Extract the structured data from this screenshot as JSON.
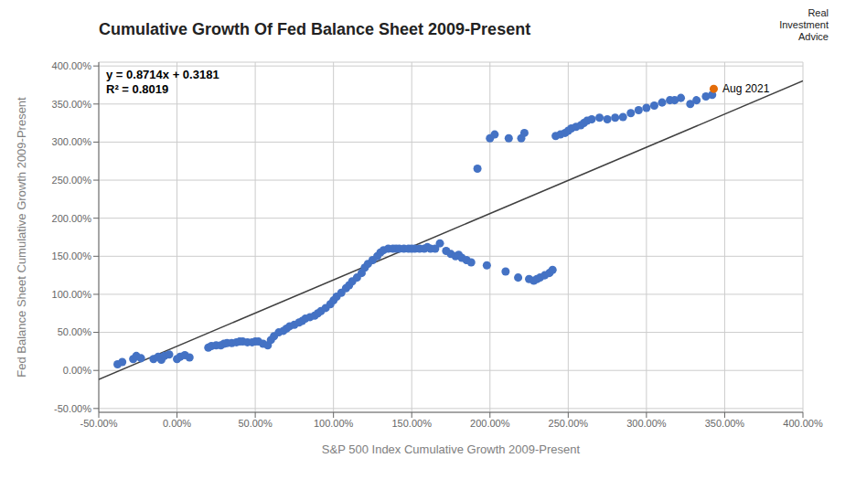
{
  "chart_data": {
    "type": "scatter",
    "title": "Cumulative Growth Of Fed Balance Sheet 2009-Present",
    "x_label": "S&P 500 Index Cumulative Growth 2009-Present",
    "y_label": "Fed Balance Sheet Cumulative Growth 2009-Present",
    "annotations": [
      [
        "y = 0.8714x + 0.3181",
        "R² = 0.8019"
      ],
      [
        "Real",
        "Investment",
        "Advice"
      ]
    ],
    "xlim": [
      -0.5,
      4.0
    ],
    "ylim": [
      -0.55,
      4.05
    ],
    "xticks": [
      {
        "value": -0.5,
        "label": "-50.00%"
      },
      {
        "value": 0.0,
        "label": "0.00%"
      },
      {
        "value": 0.5,
        "label": "50.00%"
      },
      {
        "value": 1.0,
        "label": "100.00%"
      },
      {
        "value": 1.5,
        "label": "150.00%"
      },
      {
        "value": 2.0,
        "label": "200.00%"
      },
      {
        "value": 2.5,
        "label": "250.00%"
      },
      {
        "value": 3.0,
        "label": "300.00%"
      },
      {
        "value": 3.5,
        "label": "350.00%"
      },
      {
        "value": 4.0,
        "label": "400.00%"
      }
    ],
    "yticks": [
      {
        "value": -0.5,
        "label": "-50.00%"
      },
      {
        "value": 0.0,
        "label": "0.00%"
      },
      {
        "value": 0.5,
        "label": "50.00%"
      },
      {
        "value": 1.0,
        "label": "100.00%"
      },
      {
        "value": 1.5,
        "label": "150.00%"
      },
      {
        "value": 2.0,
        "label": "200.00%"
      },
      {
        "value": 2.5,
        "label": "250.00%"
      },
      {
        "value": 3.0,
        "label": "300.00%"
      },
      {
        "value": 3.5,
        "label": "350.00%"
      },
      {
        "value": 4.0,
        "label": "400.00%"
      }
    ],
    "grid": true,
    "series": [
      {
        "type": "scatter",
        "color": "#4472C4",
        "marker": "circle",
        "x": [
          -0.38,
          -0.35,
          -0.28,
          -0.26,
          -0.23,
          -0.15,
          -0.12,
          -0.1,
          -0.08,
          -0.05,
          0.0,
          0.02,
          0.05,
          0.08,
          0.2,
          0.22,
          0.25,
          0.28,
          0.3,
          0.32,
          0.35,
          0.38,
          0.4,
          0.42,
          0.45,
          0.48,
          0.5,
          0.52,
          0.55,
          0.58,
          0.6,
          0.62,
          0.65,
          0.68,
          0.7,
          0.72,
          0.75,
          0.78,
          0.8,
          0.82,
          0.85,
          0.88,
          0.9,
          0.92,
          0.95,
          0.98,
          1.0,
          1.02,
          1.05,
          1.08,
          1.1,
          1.12,
          1.15,
          1.18,
          1.2,
          1.22,
          1.25,
          1.28,
          1.3,
          1.32,
          1.35,
          1.38,
          1.4,
          1.42,
          1.45,
          1.48,
          1.5,
          1.52,
          1.55,
          1.58,
          1.6,
          1.62,
          1.65,
          1.68,
          1.72,
          1.75,
          1.78,
          1.8,
          1.82,
          1.85,
          1.88,
          1.92,
          1.98,
          2.0,
          2.03,
          2.1,
          2.12,
          2.18,
          2.2,
          2.22,
          2.25,
          2.28,
          2.3,
          2.32,
          2.35,
          2.38,
          2.4,
          2.42,
          2.45,
          2.48,
          2.5,
          2.52,
          2.55,
          2.58,
          2.6,
          2.62,
          2.65,
          2.7,
          2.75,
          2.8,
          2.85,
          2.9,
          2.95,
          3.0,
          3.05,
          3.1,
          3.15,
          3.18,
          3.22,
          3.28,
          3.32,
          3.38,
          3.42
        ],
        "values": [
          0.08,
          0.11,
          0.15,
          0.19,
          0.16,
          0.15,
          0.18,
          0.14,
          0.19,
          0.21,
          0.15,
          0.18,
          0.2,
          0.17,
          0.3,
          0.32,
          0.33,
          0.33,
          0.35,
          0.36,
          0.36,
          0.37,
          0.38,
          0.38,
          0.37,
          0.37,
          0.38,
          0.38,
          0.35,
          0.33,
          0.4,
          0.45,
          0.5,
          0.52,
          0.55,
          0.58,
          0.6,
          0.63,
          0.65,
          0.68,
          0.7,
          0.72,
          0.75,
          0.78,
          0.82,
          0.87,
          0.92,
          0.97,
          1.02,
          1.08,
          1.12,
          1.17,
          1.22,
          1.28,
          1.35,
          1.4,
          1.45,
          1.5,
          1.55,
          1.58,
          1.6,
          1.6,
          1.6,
          1.6,
          1.6,
          1.6,
          1.6,
          1.6,
          1.6,
          1.6,
          1.62,
          1.6,
          1.6,
          1.67,
          1.57,
          1.53,
          1.5,
          1.52,
          1.48,
          1.45,
          1.42,
          2.65,
          1.38,
          3.05,
          3.1,
          1.3,
          3.05,
          1.22,
          3.05,
          3.12,
          1.2,
          1.18,
          1.2,
          1.22,
          1.25,
          1.28,
          1.32,
          3.08,
          3.1,
          3.12,
          3.15,
          3.18,
          3.2,
          3.22,
          3.25,
          3.28,
          3.3,
          3.32,
          3.3,
          3.32,
          3.33,
          3.38,
          3.42,
          3.45,
          3.48,
          3.52,
          3.55,
          3.55,
          3.58,
          3.5,
          3.55,
          3.6,
          3.62
        ]
      },
      {
        "type": "scatter",
        "color": "#E36C09",
        "marker": "circle",
        "x": [
          3.43
        ],
        "values": [
          3.7
        ],
        "label": "Aug 2021"
      },
      {
        "type": "line",
        "color": "#404040",
        "line_style": "solid",
        "x": [
          -0.5,
          4.0
        ],
        "values": [
          -0.1176,
          3.8037
        ]
      }
    ]
  }
}
